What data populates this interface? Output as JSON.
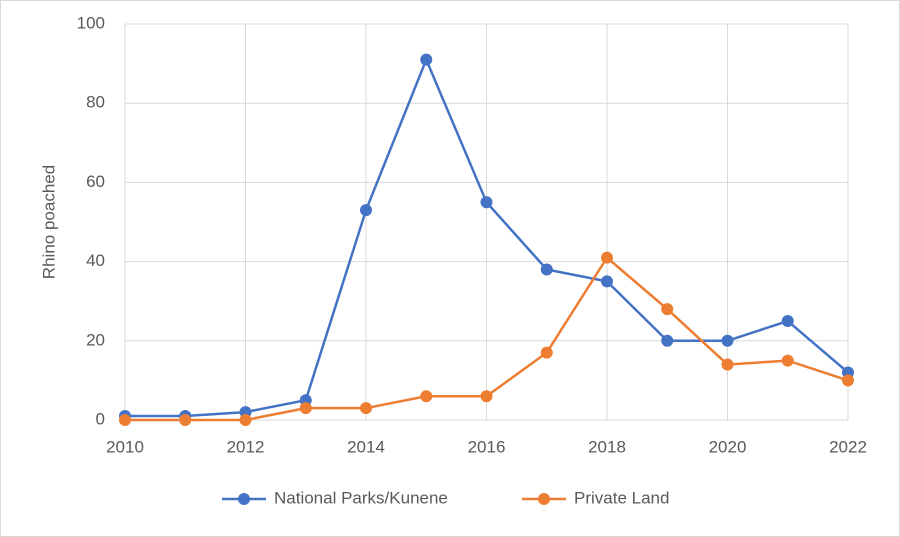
{
  "chart_data": {
    "type": "line",
    "y_label": "Rhino poached",
    "x": [
      2010,
      2011,
      2012,
      2013,
      2014,
      2015,
      2016,
      2017,
      2018,
      2019,
      2020,
      2021,
      2022
    ],
    "series": [
      {
        "name": "National Parks/Kunene",
        "color": "#4472c4",
        "values": [
          1,
          1,
          2,
          5,
          53,
          91,
          55,
          38,
          35,
          20,
          20,
          25,
          12
        ]
      },
      {
        "name": "Private Land",
        "color": "#ed7d31",
        "values": [
          0,
          0,
          0,
          3,
          3,
          6,
          6,
          17,
          41,
          28,
          14,
          15,
          10
        ]
      }
    ],
    "xlim": [
      2010,
      2022
    ],
    "xticks": [
      2010,
      2012,
      2014,
      2016,
      2018,
      2020,
      2022
    ],
    "ylim": [
      0,
      100
    ],
    "yticks": [
      0,
      20,
      40,
      60,
      80,
      100
    ],
    "grid": true,
    "legend": "bottom"
  }
}
